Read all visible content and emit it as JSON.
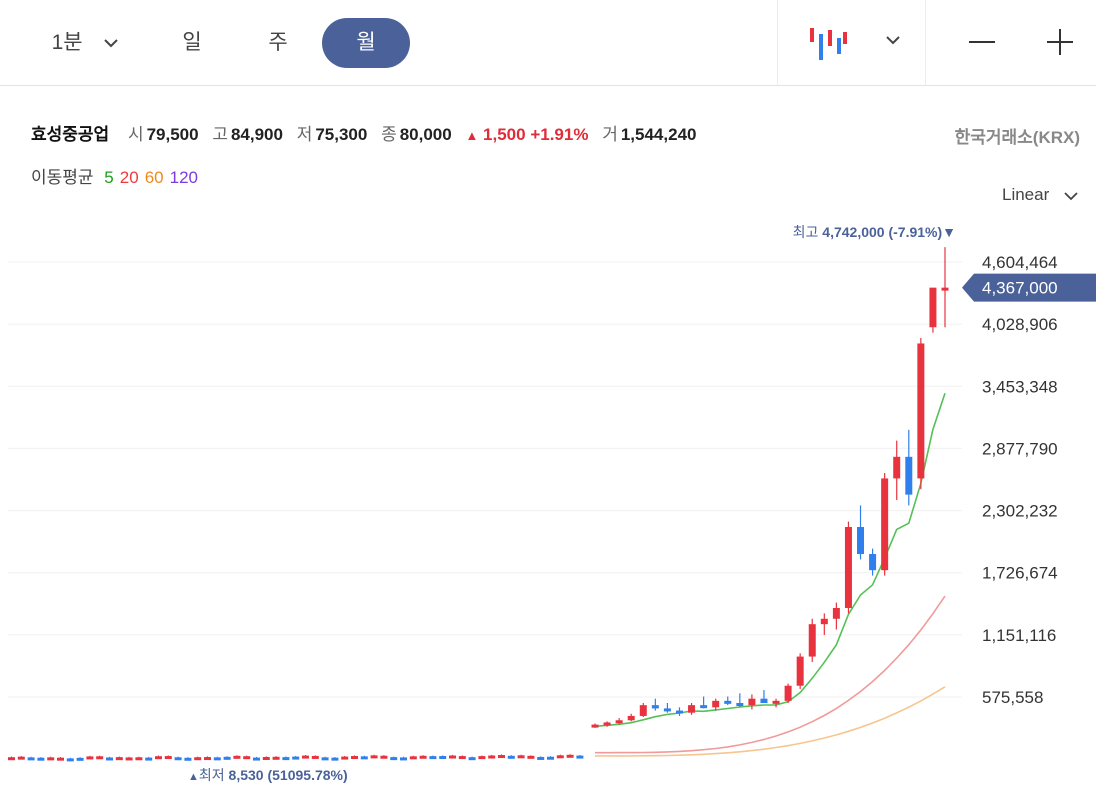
{
  "toolbar": {
    "timeframes": [
      "1분",
      "일",
      "주",
      "월"
    ],
    "active_timeframe": "월"
  },
  "stock": {
    "name": "효성중공업",
    "open_label": "시",
    "open": "79,500",
    "high_label": "고",
    "high": "84,900",
    "low_label": "저",
    "low": "75,300",
    "close_label": "종",
    "close": "80,000",
    "change_arrow": "▲",
    "change": "1,500",
    "change_pct": "+1.91%",
    "volume_label": "거",
    "volume": "1,544,240",
    "exchange": "한국거래소(KRX)"
  },
  "ma": {
    "label": "이동평균",
    "periods": [
      {
        "label": "5",
        "color": "#1aa01a"
      },
      {
        "label": "20",
        "color": "#ee3c3c"
      },
      {
        "label": "60",
        "color": "#f08a1e"
      },
      {
        "label": "120",
        "color": "#7a3ce0"
      }
    ]
  },
  "scale_mode": "Linear",
  "colors": {
    "up": "#e8333f",
    "down": "#2f80ed",
    "accent": "#4a6299",
    "ma5": "#55c055",
    "ma20": "#f29a9a",
    "ma60": "#f7c58e"
  },
  "chart_data": {
    "type": "candlestick",
    "y_ticks": [
      "4,604,464",
      "4,028,906",
      "3,453,348",
      "2,877,790",
      "2,302,232",
      "1,726,674",
      "1,151,116",
      "575,558"
    ],
    "y_tick_values": [
      4604464,
      4028906,
      3453348,
      2877790,
      2302232,
      1726674,
      1151116,
      575558
    ],
    "current_price_label": "4,367,000",
    "current_price": 4367000,
    "high_marker": {
      "label": "최고",
      "value_text": "4,742,000 (-7.91%)",
      "arrow": "▼",
      "value": 4742000
    },
    "low_marker": {
      "label": "최저",
      "value_text": "8,530 (51095.78%)",
      "arrow": "▲",
      "value": 8530
    },
    "recent_candles": [
      [
        310000,
        330000,
        290000,
        320000
      ],
      [
        320000,
        350000,
        300000,
        340000
      ],
      [
        340000,
        380000,
        320000,
        360000
      ],
      [
        360000,
        420000,
        350000,
        400000
      ],
      [
        400000,
        520000,
        390000,
        500000
      ],
      [
        500000,
        560000,
        450000,
        470000
      ],
      [
        470000,
        520000,
        430000,
        450000
      ],
      [
        450000,
        480000,
        400000,
        430000
      ],
      [
        430000,
        520000,
        410000,
        500000
      ],
      [
        500000,
        580000,
        470000,
        480000
      ],
      [
        480000,
        560000,
        450000,
        540000
      ],
      [
        540000,
        580000,
        500000,
        520000
      ],
      [
        520000,
        610000,
        480000,
        500000
      ],
      [
        500000,
        600000,
        460000,
        560000
      ],
      [
        560000,
        640000,
        520000,
        520000
      ],
      [
        520000,
        560000,
        480000,
        540000
      ],
      [
        540000,
        700000,
        520000,
        680000
      ],
      [
        680000,
        980000,
        650000,
        950000
      ],
      [
        950000,
        1300000,
        900000,
        1250000
      ],
      [
        1250000,
        1350000,
        1150000,
        1300000
      ],
      [
        1300000,
        1450000,
        1200000,
        1400000
      ],
      [
        1400000,
        2200000,
        1350000,
        2150000
      ],
      [
        2150000,
        2350000,
        1850000,
        1900000
      ],
      [
        1900000,
        1950000,
        1700000,
        1750000
      ],
      [
        1750000,
        2650000,
        1700000,
        2600000
      ],
      [
        2600000,
        2950000,
        2400000,
        2800000
      ],
      [
        2800000,
        3050000,
        2350000,
        2450000
      ],
      [
        2600000,
        3900000,
        2500000,
        3850000
      ],
      [
        4000000,
        4200000,
        3950000,
        4367000
      ],
      [
        4367000,
        4742000,
        4000000,
        4367000
      ]
    ]
  }
}
